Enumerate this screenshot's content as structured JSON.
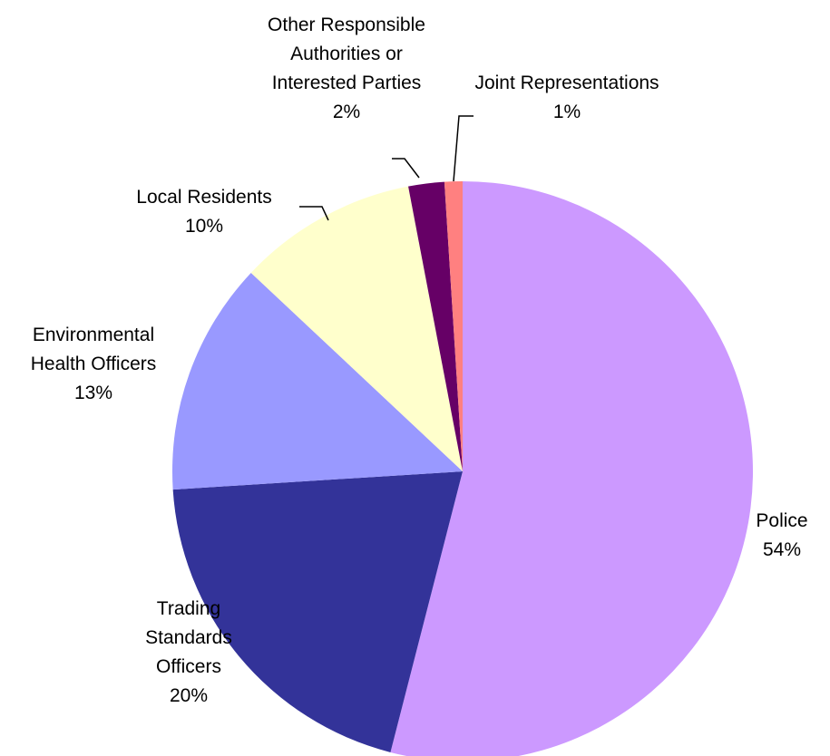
{
  "chart_data": {
    "type": "pie",
    "categories": [
      "Police",
      "Trading Standards Officers",
      "Environmental Health Officers",
      "Local Residents",
      "Other Responsible Authorities or Interested Parties",
      "Joint Representations"
    ],
    "values": [
      54,
      20,
      13,
      10,
      2,
      1
    ],
    "value_labels": [
      "54%",
      "20%",
      "13%",
      "10%",
      "2%",
      "1%"
    ],
    "colors": [
      "#cc99ff",
      "#333399",
      "#9999ff",
      "#ffffcc",
      "#660066",
      "#ff8080"
    ]
  }
}
